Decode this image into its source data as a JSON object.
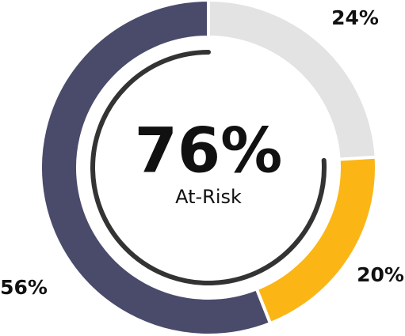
{
  "chart_data": {
    "type": "donut",
    "categories": [
      null,
      null,
      null
    ],
    "values": [
      24,
      20,
      56
    ],
    "value_labels": [
      "24%",
      "20%",
      "56%"
    ],
    "colors": [
      "#e3e3e3",
      "#fbb616",
      "#4a4b6b"
    ],
    "center": {
      "value": 76,
      "label": "76%",
      "sublabel": "At-Risk"
    }
  }
}
